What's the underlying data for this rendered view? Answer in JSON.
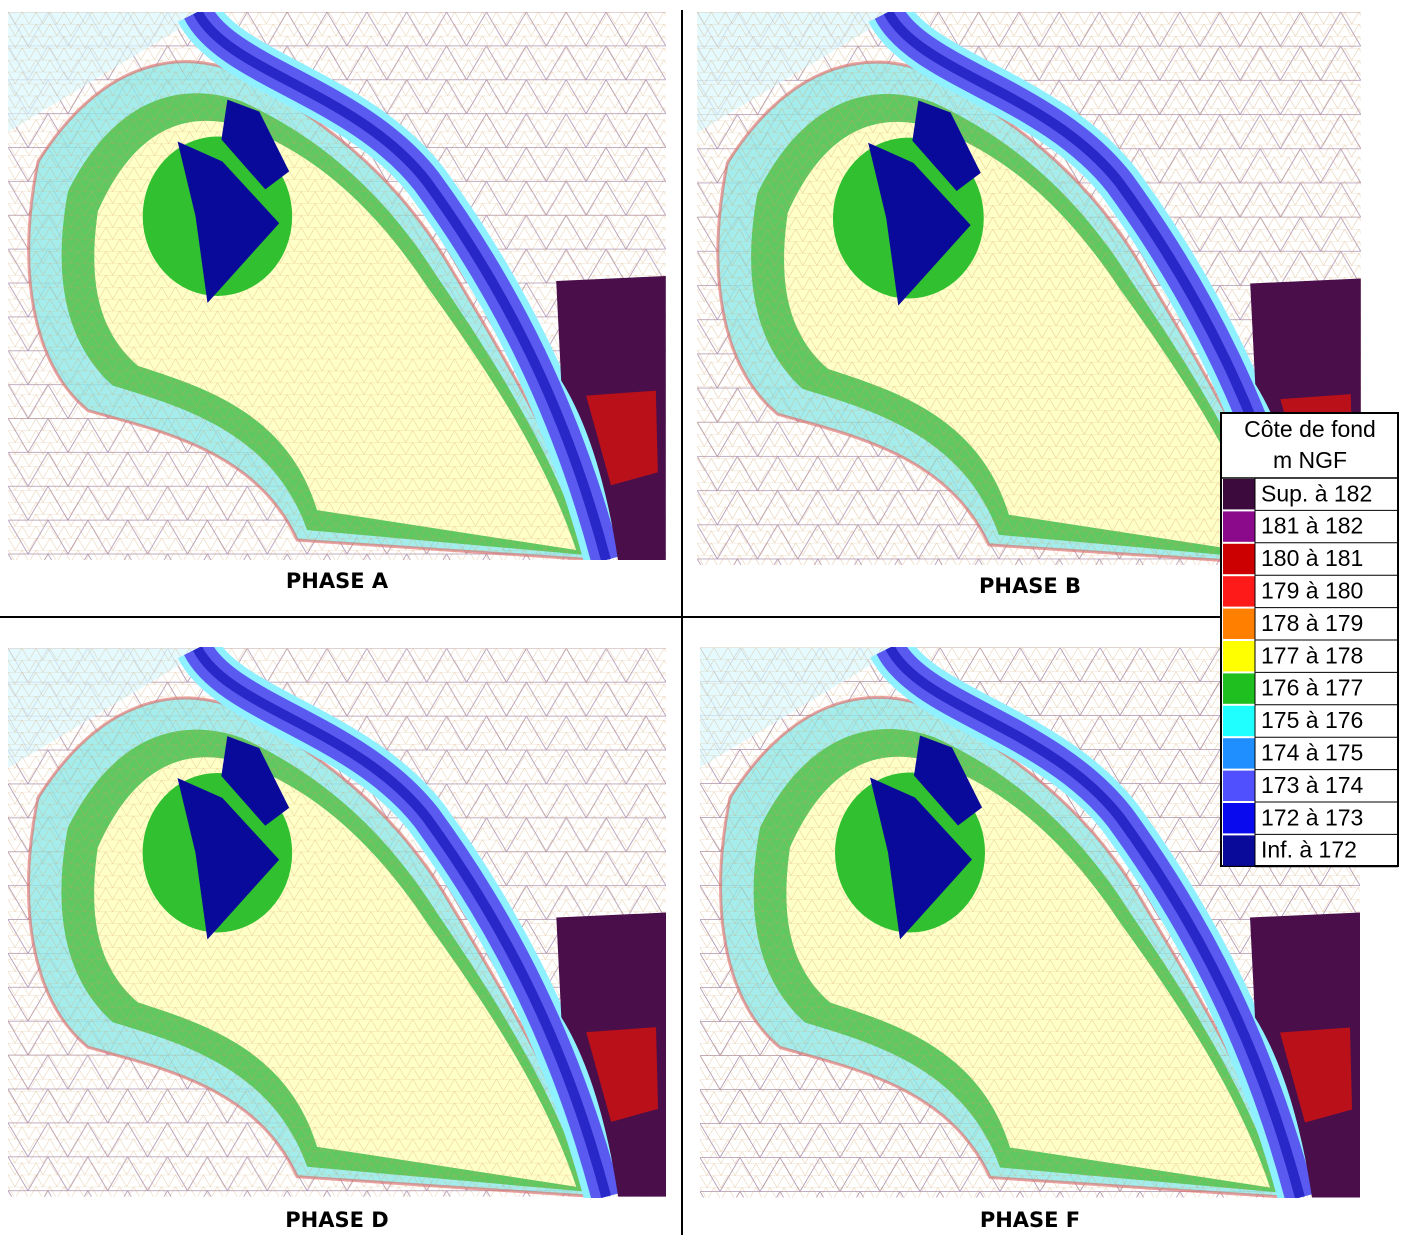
{
  "panels": [
    {
      "label": "PHASE A"
    },
    {
      "label": "PHASE B"
    },
    {
      "label": "PHASE D"
    },
    {
      "label": "PHASE F"
    }
  ],
  "legend": {
    "title_lines": [
      "Côte de fond",
      "m NGF"
    ],
    "entries": [
      {
        "label": "Sup. à 182",
        "color": "#3d0a3d"
      },
      {
        "label": "181 à 182",
        "color": "#8b0a8b"
      },
      {
        "label": "180 à 181",
        "color": "#cc0000"
      },
      {
        "label": "179 à 180",
        "color": "#ff1a1a"
      },
      {
        "label": "178 à 179",
        "color": "#ff8000"
      },
      {
        "label": "177 à 178",
        "color": "#ffff00"
      },
      {
        "label": "176 à 177",
        "color": "#1fbf1f"
      },
      {
        "label": "175 à 176",
        "color": "#1fffff"
      },
      {
        "label": "174 à 175",
        "color": "#1f8fff"
      },
      {
        "label": "173 à 174",
        "color": "#5050ff"
      },
      {
        "label": "172 à 173",
        "color": "#0a0aee"
      },
      {
        "label": "Inf. à 172",
        "color": "#0a0a9a"
      }
    ]
  }
}
